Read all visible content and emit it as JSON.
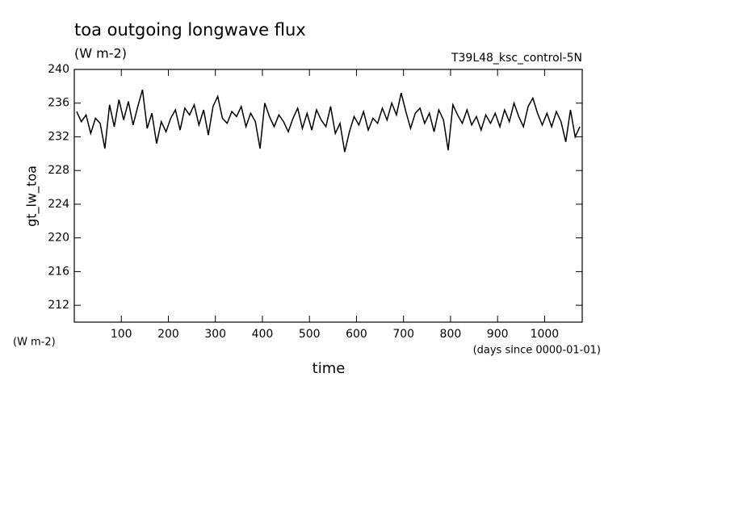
{
  "chart_data": {
    "type": "line",
    "title": "toa outgoing longwave flux",
    "units": "(W m-2)",
    "run_label": "T39L48_ksc_control-5N",
    "ylabel": "gt_lw_toa",
    "y_units": "(W m-2)",
    "xlabel": "time",
    "x_units": "(days since 0000-01-01)",
    "color": "#000000",
    "xlim": [
      0,
      1080
    ],
    "ylim": [
      210,
      240
    ],
    "xticks": [
      100,
      200,
      300,
      400,
      500,
      600,
      700,
      800,
      900,
      1000
    ],
    "yticks": [
      212,
      216,
      220,
      224,
      228,
      232,
      236,
      240
    ],
    "x": [
      5,
      15,
      25,
      35,
      45,
      55,
      65,
      75,
      85,
      95,
      105,
      115,
      125,
      135,
      145,
      155,
      165,
      175,
      185,
      195,
      205,
      215,
      225,
      235,
      245,
      255,
      265,
      275,
      285,
      295,
      305,
      315,
      325,
      335,
      345,
      355,
      365,
      375,
      385,
      395,
      405,
      415,
      425,
      435,
      445,
      455,
      465,
      475,
      485,
      495,
      505,
      515,
      525,
      535,
      545,
      555,
      565,
      575,
      585,
      595,
      605,
      615,
      625,
      635,
      645,
      655,
      665,
      675,
      685,
      695,
      705,
      715,
      725,
      735,
      745,
      755,
      765,
      775,
      785,
      795,
      805,
      815,
      825,
      835,
      845,
      855,
      865,
      875,
      885,
      895,
      905,
      915,
      925,
      935,
      945,
      955,
      965,
      975,
      985,
      995,
      1005,
      1015,
      1025,
      1035,
      1045,
      1055,
      1065,
      1075
    ],
    "values": [
      235.0,
      233.8,
      234.6,
      232.4,
      234.2,
      233.6,
      230.6,
      235.8,
      233.2,
      236.4,
      234.0,
      236.2,
      233.4,
      235.6,
      237.6,
      233.0,
      234.8,
      231.2,
      233.8,
      232.6,
      234.2,
      235.2,
      232.8,
      235.4,
      234.6,
      235.8,
      233.4,
      235.2,
      232.2,
      235.6,
      236.8,
      234.2,
      233.6,
      235.0,
      234.4,
      235.6,
      233.2,
      234.8,
      233.8,
      230.6,
      236.0,
      234.4,
      233.2,
      234.6,
      233.8,
      232.6,
      234.2,
      235.4,
      233.0,
      234.8,
      232.8,
      235.2,
      234.0,
      233.2,
      235.6,
      232.4,
      233.6,
      230.2,
      232.6,
      234.4,
      233.4,
      235.0,
      232.8,
      234.2,
      233.6,
      235.4,
      234.0,
      236.0,
      234.6,
      237.2,
      235.0,
      233.0,
      234.8,
      235.4,
      233.6,
      234.8,
      232.6,
      235.2,
      234.0,
      230.4,
      235.8,
      234.6,
      233.6,
      235.2,
      233.4,
      234.4,
      232.8,
      234.6,
      233.6,
      234.8,
      233.2,
      235.2,
      233.8,
      236.0,
      234.4,
      233.2,
      235.6,
      236.6,
      234.8,
      233.4,
      234.8,
      233.2,
      235.0,
      233.8,
      231.4,
      235.2,
      232.0,
      233.2
    ]
  }
}
